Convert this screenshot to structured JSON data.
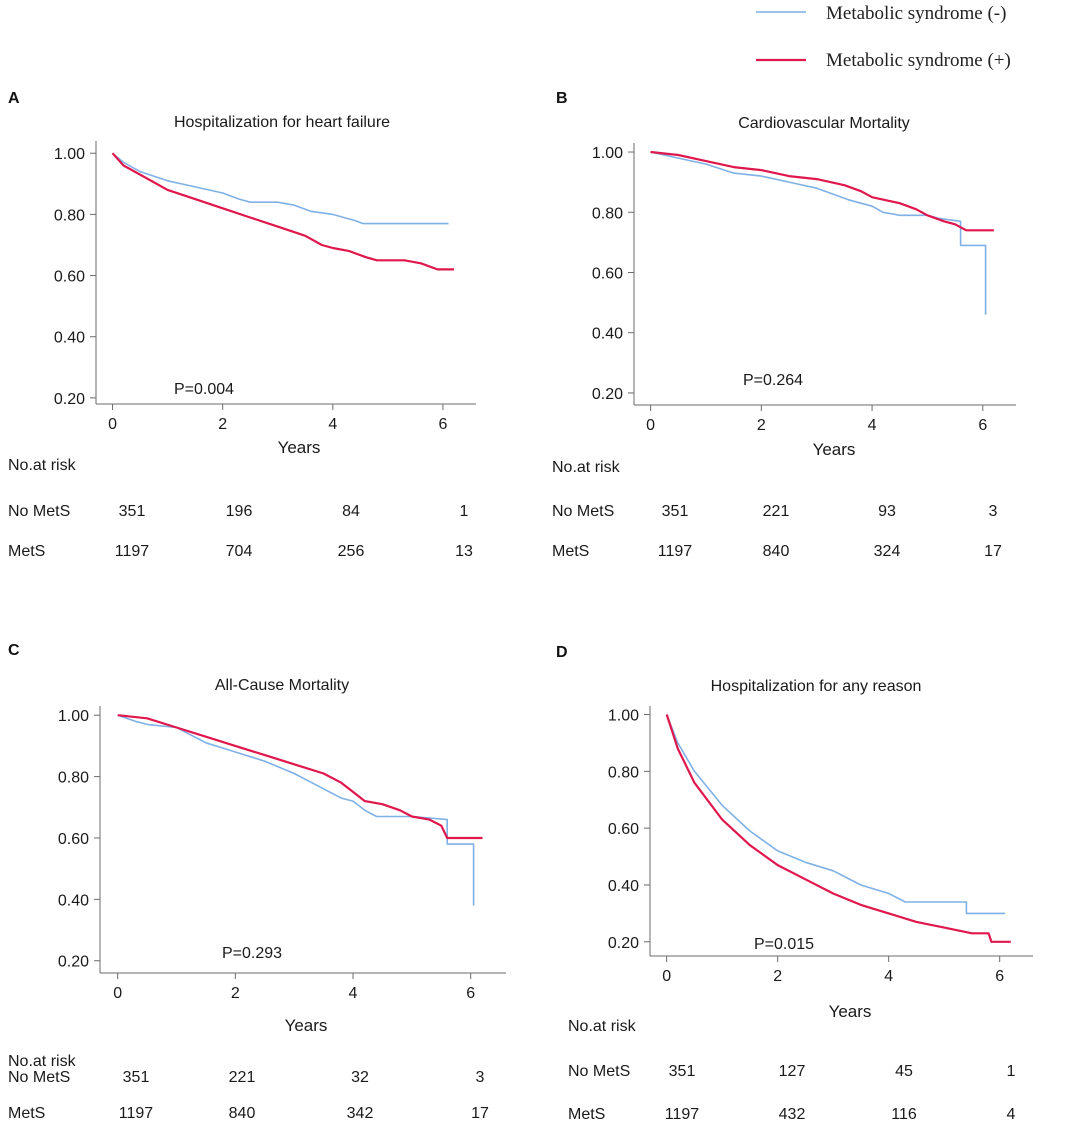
{
  "legend": {
    "entries": [
      {
        "label": "Metabolic syndrome (-)",
        "color": "#7fb1e6"
      },
      {
        "label": "Metabolic syndrome (+)",
        "color": "#e0174d"
      }
    ]
  },
  "risk_table_header": "No.at risk",
  "chart_data": [
    {
      "panel": "A",
      "type": "line",
      "title": "Hospitalization for heart failure",
      "xlabel": "Years",
      "ylabel": "",
      "x_ticks": [
        0,
        2,
        4,
        6
      ],
      "y_ticks": [
        "1.00",
        "0.80",
        "0.60",
        "0.40",
        "0.20"
      ],
      "xlim": [
        -0.3,
        6.6
      ],
      "ylim": [
        0.18,
        1.04
      ],
      "p_value": "P=0.004",
      "series": [
        {
          "name": "Metabolic syndrome (-)",
          "color": "#7fb1e6",
          "points": [
            [
              0,
              1.0
            ],
            [
              0.2,
              0.97
            ],
            [
              0.5,
              0.94
            ],
            [
              1.0,
              0.91
            ],
            [
              1.5,
              0.89
            ],
            [
              2.0,
              0.87
            ],
            [
              2.3,
              0.85
            ],
            [
              2.5,
              0.84
            ],
            [
              3.0,
              0.84
            ],
            [
              3.3,
              0.83
            ],
            [
              3.6,
              0.81
            ],
            [
              4.0,
              0.8
            ],
            [
              4.2,
              0.79
            ],
            [
              4.4,
              0.78
            ],
            [
              4.55,
              0.77
            ],
            [
              4.8,
              0.77
            ],
            [
              5.5,
              0.77
            ],
            [
              6.1,
              0.77
            ]
          ]
        },
        {
          "name": "Metabolic syndrome (+)",
          "color": "#e0174d",
          "points": [
            [
              0,
              1.0
            ],
            [
              0.2,
              0.96
            ],
            [
              0.5,
              0.93
            ],
            [
              1.0,
              0.88
            ],
            [
              1.5,
              0.85
            ],
            [
              2.0,
              0.82
            ],
            [
              2.5,
              0.79
            ],
            [
              3.0,
              0.76
            ],
            [
              3.5,
              0.73
            ],
            [
              3.8,
              0.7
            ],
            [
              4.0,
              0.69
            ],
            [
              4.3,
              0.68
            ],
            [
              4.6,
              0.66
            ],
            [
              4.8,
              0.65
            ],
            [
              5.3,
              0.65
            ],
            [
              5.6,
              0.64
            ],
            [
              5.9,
              0.62
            ],
            [
              6.2,
              0.62
            ]
          ]
        }
      ],
      "risk_table": {
        "x": [
          0,
          2,
          4,
          6
        ],
        "rows": [
          {
            "label": "No MetS",
            "values": [
              "351",
              "196",
              "84",
              "1"
            ]
          },
          {
            "label": "MetS",
            "values": [
              "1197",
              "704",
              "256",
              "13"
            ]
          }
        ]
      }
    },
    {
      "panel": "B",
      "type": "line",
      "title": "Cardiovascular Mortality",
      "xlabel": "Years",
      "ylabel": "",
      "x_ticks": [
        0,
        2,
        4,
        6
      ],
      "y_ticks": [
        "1.00",
        "0.80",
        "0.60",
        "0.40",
        "0.20"
      ],
      "xlim": [
        -0.3,
        6.6
      ],
      "ylim": [
        0.16,
        1.03
      ],
      "p_value": "P=0.264",
      "series": [
        {
          "name": "Metabolic syndrome (-)",
          "color": "#7fb1e6",
          "points": [
            [
              0,
              1.0
            ],
            [
              0.5,
              0.98
            ],
            [
              1.0,
              0.96
            ],
            [
              1.5,
              0.93
            ],
            [
              2.0,
              0.92
            ],
            [
              2.5,
              0.9
            ],
            [
              3.0,
              0.88
            ],
            [
              3.3,
              0.86
            ],
            [
              3.6,
              0.84
            ],
            [
              4.0,
              0.82
            ],
            [
              4.2,
              0.8
            ],
            [
              4.5,
              0.79
            ],
            [
              5.0,
              0.79
            ],
            [
              5.2,
              0.78
            ],
            [
              5.6,
              0.77
            ],
            [
              5.6,
              0.69
            ],
            [
              6.05,
              0.69
            ],
            [
              6.05,
              0.46
            ]
          ]
        },
        {
          "name": "Metabolic syndrome (+)",
          "color": "#e0174d",
          "points": [
            [
              0,
              1.0
            ],
            [
              0.5,
              0.99
            ],
            [
              1.0,
              0.97
            ],
            [
              1.5,
              0.95
            ],
            [
              2.0,
              0.94
            ],
            [
              2.5,
              0.92
            ],
            [
              3.0,
              0.91
            ],
            [
              3.5,
              0.89
            ],
            [
              3.8,
              0.87
            ],
            [
              4.0,
              0.85
            ],
            [
              4.5,
              0.83
            ],
            [
              4.8,
              0.81
            ],
            [
              5.0,
              0.79
            ],
            [
              5.3,
              0.77
            ],
            [
              5.5,
              0.76
            ],
            [
              5.7,
              0.74
            ],
            [
              6.2,
              0.74
            ]
          ]
        }
      ],
      "risk_table": {
        "x": [
          0,
          2,
          4,
          6
        ],
        "rows": [
          {
            "label": "No MetS",
            "values": [
              "351",
              "221",
              "93",
              "3"
            ]
          },
          {
            "label": "MetS",
            "values": [
              "1197",
              "840",
              "324",
              "17"
            ]
          }
        ]
      }
    },
    {
      "panel": "C",
      "type": "line",
      "title": "All-Cause Mortality",
      "xlabel": "Years",
      "ylabel": "",
      "x_ticks": [
        0,
        2,
        4,
        6
      ],
      "y_ticks": [
        "1.00",
        "0.80",
        "0.60",
        "0.40",
        "0.20"
      ],
      "xlim": [
        -0.3,
        6.6
      ],
      "ylim": [
        0.16,
        1.03
      ],
      "p_value": "P=0.293",
      "series": [
        {
          "name": "Metabolic syndrome (-)",
          "color": "#7fb1e6",
          "points": [
            [
              0,
              1.0
            ],
            [
              0.3,
              0.98
            ],
            [
              0.5,
              0.97
            ],
            [
              1.0,
              0.96
            ],
            [
              1.5,
              0.91
            ],
            [
              2.0,
              0.88
            ],
            [
              2.5,
              0.85
            ],
            [
              3.0,
              0.81
            ],
            [
              3.3,
              0.78
            ],
            [
              3.6,
              0.75
            ],
            [
              3.8,
              0.73
            ],
            [
              4.0,
              0.72
            ],
            [
              4.2,
              0.69
            ],
            [
              4.4,
              0.67
            ],
            [
              5.0,
              0.67
            ],
            [
              5.6,
              0.66
            ],
            [
              5.6,
              0.58
            ],
            [
              6.05,
              0.58
            ],
            [
              6.05,
              0.38
            ]
          ]
        },
        {
          "name": "Metabolic syndrome (+)",
          "color": "#e0174d",
          "points": [
            [
              0,
              1.0
            ],
            [
              0.5,
              0.99
            ],
            [
              1.0,
              0.96
            ],
            [
              1.5,
              0.93
            ],
            [
              2.0,
              0.9
            ],
            [
              2.5,
              0.87
            ],
            [
              3.0,
              0.84
            ],
            [
              3.5,
              0.81
            ],
            [
              3.8,
              0.78
            ],
            [
              4.0,
              0.75
            ],
            [
              4.2,
              0.72
            ],
            [
              4.5,
              0.71
            ],
            [
              4.8,
              0.69
            ],
            [
              5.0,
              0.67
            ],
            [
              5.3,
              0.66
            ],
            [
              5.5,
              0.64
            ],
            [
              5.6,
              0.6
            ],
            [
              6.2,
              0.6
            ]
          ]
        }
      ],
      "risk_table": {
        "x": [
          0,
          2,
          4,
          6
        ],
        "rows": [
          {
            "label": "No MetS",
            "values": [
              "351",
              "221",
              "32",
              "3"
            ]
          },
          {
            "label": "MetS",
            "values": [
              "1197",
              "840",
              "342",
              "17"
            ]
          }
        ]
      }
    },
    {
      "panel": "D",
      "type": "line",
      "title": "Hospitalization for any reason",
      "xlabel": "Years",
      "ylabel": "",
      "x_ticks": [
        0,
        2,
        4,
        6
      ],
      "y_ticks": [
        "1.00",
        "0.80",
        "0.60",
        "0.40",
        "0.20"
      ],
      "xlim": [
        -0.3,
        6.6
      ],
      "ylim": [
        0.15,
        1.03
      ],
      "p_value": "P=0.015",
      "series": [
        {
          "name": "Metabolic syndrome (-)",
          "color": "#7fb1e6",
          "points": [
            [
              0,
              1.0
            ],
            [
              0.2,
              0.9
            ],
            [
              0.5,
              0.8
            ],
            [
              1.0,
              0.68
            ],
            [
              1.5,
              0.59
            ],
            [
              2.0,
              0.52
            ],
            [
              2.5,
              0.48
            ],
            [
              3.0,
              0.45
            ],
            [
              3.5,
              0.4
            ],
            [
              4.0,
              0.37
            ],
            [
              4.3,
              0.34
            ],
            [
              5.0,
              0.34
            ],
            [
              5.4,
              0.34
            ],
            [
              5.4,
              0.3
            ],
            [
              6.1,
              0.3
            ]
          ]
        },
        {
          "name": "Metabolic syndrome (+)",
          "color": "#e0174d",
          "points": [
            [
              0,
              1.0
            ],
            [
              0.2,
              0.88
            ],
            [
              0.5,
              0.76
            ],
            [
              1.0,
              0.63
            ],
            [
              1.5,
              0.54
            ],
            [
              2.0,
              0.47
            ],
            [
              2.5,
              0.42
            ],
            [
              3.0,
              0.37
            ],
            [
              3.5,
              0.33
            ],
            [
              4.0,
              0.3
            ],
            [
              4.5,
              0.27
            ],
            [
              5.0,
              0.25
            ],
            [
              5.5,
              0.23
            ],
            [
              5.8,
              0.23
            ],
            [
              5.85,
              0.2
            ],
            [
              6.2,
              0.2
            ]
          ]
        }
      ],
      "risk_table": {
        "x": [
          0,
          2,
          4,
          6
        ],
        "rows": [
          {
            "label": "No MetS",
            "values": [
              "351",
              "127",
              "45",
              "1"
            ]
          },
          {
            "label": "MetS",
            "values": [
              "1197",
              "432",
              "116",
              "4"
            ]
          }
        ]
      }
    }
  ]
}
